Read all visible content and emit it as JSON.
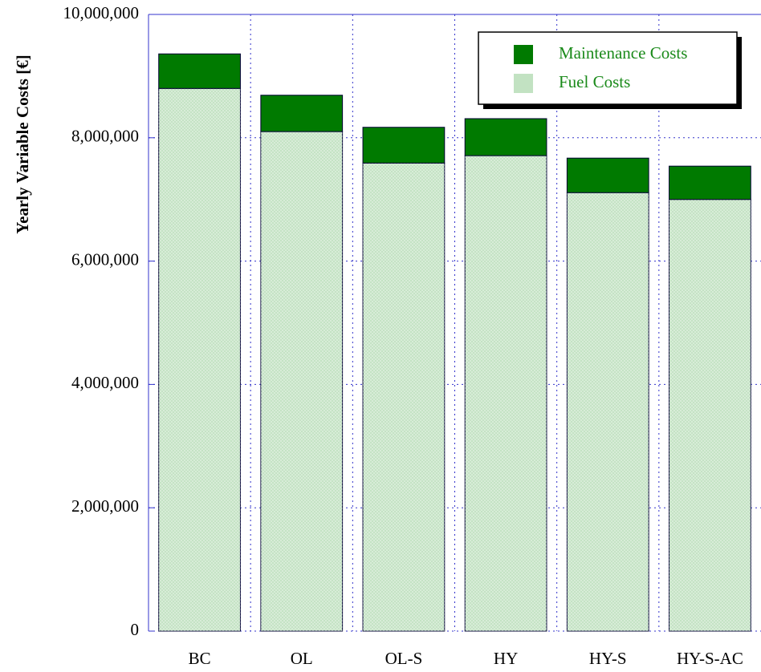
{
  "chart_data": {
    "type": "stacked_bar",
    "y_label": "Yearly Variable Costs [€]",
    "categories": [
      "BC",
      "OL",
      "OL-S",
      "HY",
      "HY-S",
      "HY-S-AC"
    ],
    "series": [
      {
        "name": "Fuel Costs",
        "color": "#c2e2c2",
        "values": [
          8800000,
          8100000,
          7590000,
          7710000,
          7110000,
          7000000
        ]
      },
      {
        "name": "Maintenance Costs",
        "color": "#007a00",
        "values": [
          560000,
          590000,
          580000,
          600000,
          560000,
          540000
        ]
      }
    ],
    "ylim": [
      0,
      10000000
    ],
    "yticks": [
      0,
      {
        "value": 2000000,
        "label": "2,000,000"
      },
      {
        "value": 4000000,
        "label": "4,000,000"
      },
      {
        "value": 6000000,
        "label": "6,000,000"
      },
      {
        "value": 8000000,
        "label": "8,000,000"
      },
      {
        "value": 10000000,
        "label": "10,000,000"
      }
    ],
    "grid": true,
    "legend": "upper right"
  }
}
